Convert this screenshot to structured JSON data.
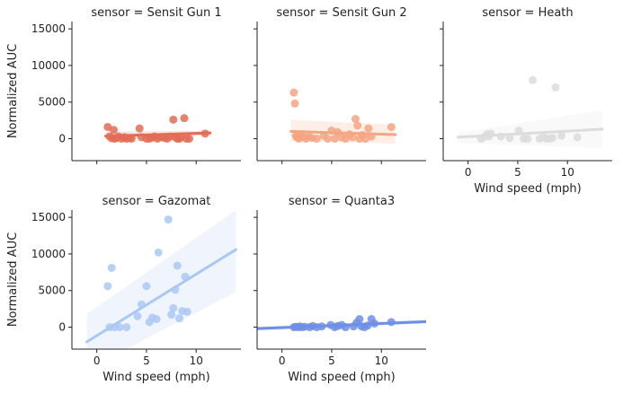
{
  "chart_data": {
    "type": "scatter",
    "shared_axes": {
      "xlabel": "Wind speed (mph)",
      "ylabel": "Normalized AUC",
      "xlim": [
        -2.5,
        14.5
      ],
      "ylim": [
        -3000,
        16000
      ],
      "xticks": [
        0,
        5,
        10
      ],
      "yticks": [
        0,
        5000,
        10000,
        15000
      ],
      "xtick_labels": [
        "0",
        "5",
        "10"
      ],
      "ytick_labels": [
        "0",
        "5000",
        "10000",
        "15000"
      ]
    },
    "panels": [
      {
        "title": "sensor = Sensit Gun 1",
        "color": "#e36c55",
        "fit": {
          "x": [
            0.9,
            11.4
          ],
          "y": [
            350,
            780
          ]
        },
        "band": {
          "upper": [
            950,
            1100
          ],
          "lower": [
            -200,
            450
          ]
        },
        "points": [
          [
            1.1,
            1600
          ],
          [
            1.3,
            300
          ],
          [
            1.5,
            50
          ],
          [
            1.7,
            1200
          ],
          [
            1.8,
            0
          ],
          [
            2.0,
            100
          ],
          [
            2.2,
            300
          ],
          [
            2.5,
            0
          ],
          [
            2.8,
            200
          ],
          [
            3.0,
            0
          ],
          [
            3.3,
            100
          ],
          [
            3.5,
            0
          ],
          [
            4.3,
            1400
          ],
          [
            4.5,
            200
          ],
          [
            5.0,
            0
          ],
          [
            5.3,
            0
          ],
          [
            5.6,
            150
          ],
          [
            5.8,
            300
          ],
          [
            6.1,
            0
          ],
          [
            6.4,
            200
          ],
          [
            6.8,
            100
          ],
          [
            7.1,
            0
          ],
          [
            7.4,
            300
          ],
          [
            7.7,
            2600
          ],
          [
            7.9,
            200
          ],
          [
            8.1,
            0
          ],
          [
            8.3,
            0
          ],
          [
            8.5,
            250
          ],
          [
            8.8,
            2800
          ],
          [
            9.0,
            0
          ],
          [
            9.3,
            0
          ],
          [
            10.9,
            700
          ]
        ]
      },
      {
        "title": "sensor = Sensit Gun 2",
        "color": "#f4a582",
        "fit": {
          "x": [
            0.9,
            11.4
          ],
          "y": [
            1000,
            550
          ]
        },
        "band": {
          "upper": [
            2600,
            1900
          ],
          "lower": [
            -300,
            -700
          ]
        },
        "points": [
          [
            1.2,
            6300
          ],
          [
            1.3,
            4800
          ],
          [
            1.4,
            400
          ],
          [
            1.5,
            200
          ],
          [
            1.7,
            0
          ],
          [
            1.9,
            600
          ],
          [
            2.1,
            300
          ],
          [
            2.4,
            0
          ],
          [
            2.7,
            300
          ],
          [
            3.0,
            100
          ],
          [
            3.5,
            0
          ],
          [
            4.2,
            400
          ],
          [
            4.6,
            0
          ],
          [
            5.0,
            1100
          ],
          [
            5.3,
            0
          ],
          [
            5.6,
            900
          ],
          [
            6.0,
            200
          ],
          [
            6.4,
            0
          ],
          [
            6.8,
            600
          ],
          [
            7.1,
            200
          ],
          [
            7.4,
            2700
          ],
          [
            7.6,
            1800
          ],
          [
            7.8,
            0
          ],
          [
            8.1,
            500
          ],
          [
            8.4,
            0
          ],
          [
            8.7,
            1400
          ],
          [
            9.0,
            300
          ],
          [
            11.0,
            1600
          ]
        ]
      },
      {
        "title": "sensor = Heath",
        "color": "#dcdcdc",
        "fit": {
          "x": [
            -1.0,
            13.5
          ],
          "y": [
            200,
            1300
          ]
        },
        "band": {
          "upper": [
            800,
            3900
          ],
          "lower": [
            -600,
            -1300
          ]
        },
        "points": [
          [
            1.3,
            0
          ],
          [
            1.6,
            200
          ],
          [
            1.9,
            600
          ],
          [
            2.1,
            300
          ],
          [
            2.3,
            700
          ],
          [
            3.3,
            300
          ],
          [
            4.2,
            100
          ],
          [
            5.1,
            1100
          ],
          [
            5.6,
            0
          ],
          [
            6.0,
            0
          ],
          [
            6.5,
            8000
          ],
          [
            7.2,
            0
          ],
          [
            7.6,
            200
          ],
          [
            7.9,
            0
          ],
          [
            8.2,
            0
          ],
          [
            8.5,
            100
          ],
          [
            8.8,
            7000
          ],
          [
            9.4,
            400
          ],
          [
            11.0,
            200
          ]
        ]
      },
      {
        "title": "sensor = Gazomat",
        "color": "#aac8f5",
        "fit": {
          "x": [
            -1.0,
            14.0
          ],
          "y": [
            -2000,
            10600
          ]
        },
        "band": {
          "upper": [
            1800,
            16000
          ],
          "lower": [
            -5800,
            4800
          ]
        },
        "points": [
          [
            1.1,
            5600
          ],
          [
            1.3,
            0
          ],
          [
            1.5,
            8100
          ],
          [
            1.8,
            0
          ],
          [
            2.3,
            0
          ],
          [
            3.0,
            0
          ],
          [
            4.1,
            1500
          ],
          [
            4.5,
            3100
          ],
          [
            5.0,
            5600
          ],
          [
            5.3,
            700
          ],
          [
            5.6,
            1300
          ],
          [
            6.0,
            1100
          ],
          [
            6.2,
            10200
          ],
          [
            7.2,
            14700
          ],
          [
            7.5,
            1700
          ],
          [
            7.7,
            2600
          ],
          [
            7.9,
            5100
          ],
          [
            8.1,
            8400
          ],
          [
            8.3,
            1200
          ],
          [
            8.6,
            2200
          ],
          [
            8.9,
            6900
          ],
          [
            9.1,
            2100
          ]
        ]
      },
      {
        "title": "sensor = Quanta3",
        "color": "#6f8fe6",
        "fit": {
          "x": [
            -2.5,
            14.5
          ],
          "y": [
            -200,
            750
          ]
        },
        "band": {
          "upper": [
            100,
            1000
          ],
          "lower": [
            -500,
            500
          ]
        },
        "points": [
          [
            1.2,
            0
          ],
          [
            1.4,
            50
          ],
          [
            1.6,
            0
          ],
          [
            1.8,
            100
          ],
          [
            2.0,
            0
          ],
          [
            2.3,
            50
          ],
          [
            2.8,
            0
          ],
          [
            3.1,
            150
          ],
          [
            3.5,
            0
          ],
          [
            4.0,
            100
          ],
          [
            4.9,
            300
          ],
          [
            5.3,
            0
          ],
          [
            5.6,
            150
          ],
          [
            6.0,
            300
          ],
          [
            6.4,
            0
          ],
          [
            7.2,
            100
          ],
          [
            7.5,
            600
          ],
          [
            7.8,
            1100
          ],
          [
            8.0,
            100
          ],
          [
            8.3,
            0
          ],
          [
            8.6,
            200
          ],
          [
            9.0,
            1100
          ],
          [
            9.3,
            500
          ],
          [
            11.0,
            700
          ]
        ]
      }
    ]
  }
}
